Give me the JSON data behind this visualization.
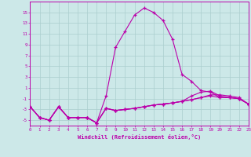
{
  "xlabel": "Windchill (Refroidissement éolien,°C)",
  "background_color": "#cce8e8",
  "grid_color": "#aacece",
  "line_color": "#bb00aa",
  "x": [
    0,
    1,
    2,
    3,
    4,
    5,
    6,
    7,
    8,
    9,
    10,
    11,
    12,
    13,
    14,
    15,
    16,
    17,
    18,
    19,
    20,
    21,
    22,
    23
  ],
  "line1": [
    -2.5,
    -4.5,
    -5.0,
    -2.5,
    -4.5,
    -4.5,
    -4.5,
    -5.5,
    -0.5,
    8.5,
    11.5,
    14.5,
    15.8,
    15.0,
    13.5,
    10.0,
    3.5,
    2.2,
    0.5,
    0.2,
    -0.8,
    -0.8,
    -1.0,
    -2.0
  ],
  "line2": [
    -2.5,
    -4.5,
    -5.0,
    -2.5,
    -4.5,
    -4.5,
    -4.5,
    -5.5,
    -2.8,
    -3.2,
    -3.0,
    -2.8,
    -2.5,
    -2.2,
    -2.0,
    -1.8,
    -1.5,
    -0.5,
    0.2,
    0.4,
    -0.5,
    -0.8,
    -1.0,
    -2.0
  ],
  "line3": [
    -2.5,
    -4.5,
    -5.0,
    -2.5,
    -4.5,
    -4.5,
    -4.5,
    -5.5,
    -2.8,
    -3.2,
    -3.0,
    -2.8,
    -2.5,
    -2.2,
    -2.0,
    -1.8,
    -1.5,
    -1.2,
    -0.8,
    -0.5,
    -0.8,
    -0.8,
    -1.0,
    -2.0
  ],
  "line4": [
    -2.5,
    -4.5,
    -5.0,
    -2.5,
    -4.5,
    -4.5,
    -4.5,
    -5.5,
    -2.8,
    -3.2,
    -3.0,
    -2.8,
    -2.5,
    -2.2,
    -2.0,
    -1.8,
    -1.5,
    -1.2,
    -0.8,
    -0.3,
    -0.3,
    -0.5,
    -0.8,
    -2.0
  ],
  "ylim": [
    -6,
    17
  ],
  "yticks": [
    -5,
    -3,
    -1,
    1,
    3,
    5,
    7,
    9,
    11,
    13,
    15
  ],
  "xlim": [
    0,
    23
  ],
  "xticks": [
    0,
    1,
    2,
    3,
    4,
    5,
    6,
    7,
    8,
    9,
    10,
    11,
    12,
    13,
    14,
    15,
    16,
    17,
    18,
    19,
    20,
    21,
    22,
    23
  ]
}
